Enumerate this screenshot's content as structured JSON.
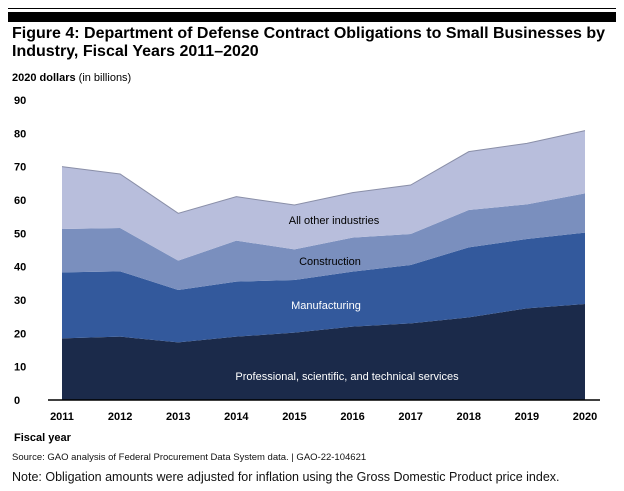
{
  "figure": {
    "title": "Figure 4: Department of Defense Contract Obligations to Small Businesses by Industry, Fiscal Years 2011–2020",
    "y_unit_bold": "2020 dollars",
    "y_unit_rest": " (in billions)",
    "source": "Source: GAO analysis of Federal Procurement Data System data.  |  GAO-22-104621",
    "note": "Note: Obligation amounts were adjusted for inflation using the Gross Domestic Product price index."
  },
  "chart_data": {
    "type": "area",
    "stacked": true,
    "title": "Figure 4: Department of Defense Contract Obligations to Small Businesses by Industry, Fiscal Years 2011–2020",
    "xlabel": "Fiscal year",
    "ylabel": "2020 dollars (in billions)",
    "ylim": [
      0,
      90
    ],
    "yticks": [
      0,
      10,
      20,
      30,
      40,
      50,
      60,
      70,
      80,
      90
    ],
    "grid": false,
    "x": [
      "2011",
      "2012",
      "2013",
      "2014",
      "2015",
      "2016",
      "2017",
      "2018",
      "2019",
      "2020"
    ],
    "series": [
      {
        "name": "Professional, scientific, and technical services",
        "color": "#1b2a4a",
        "values": [
          18.5,
          19.0,
          17.3,
          19.0,
          20.2,
          22.0,
          23.0,
          24.8,
          27.5,
          28.8
        ]
      },
      {
        "name": "Manufacturing",
        "color": "#33599c",
        "values": [
          19.8,
          19.6,
          15.7,
          16.5,
          15.8,
          16.5,
          17.5,
          21.0,
          20.8,
          21.4
        ]
      },
      {
        "name": "Construction",
        "color": "#7a8fbe",
        "values": [
          13.0,
          13.0,
          8.8,
          12.3,
          9.2,
          10.2,
          9.3,
          11.2,
          10.4,
          11.8
        ]
      },
      {
        "name": "All other industries",
        "color": "#b8bedc",
        "values": [
          18.7,
          16.2,
          14.2,
          13.2,
          13.3,
          13.5,
          14.7,
          17.5,
          18.3,
          18.8
        ]
      }
    ]
  }
}
